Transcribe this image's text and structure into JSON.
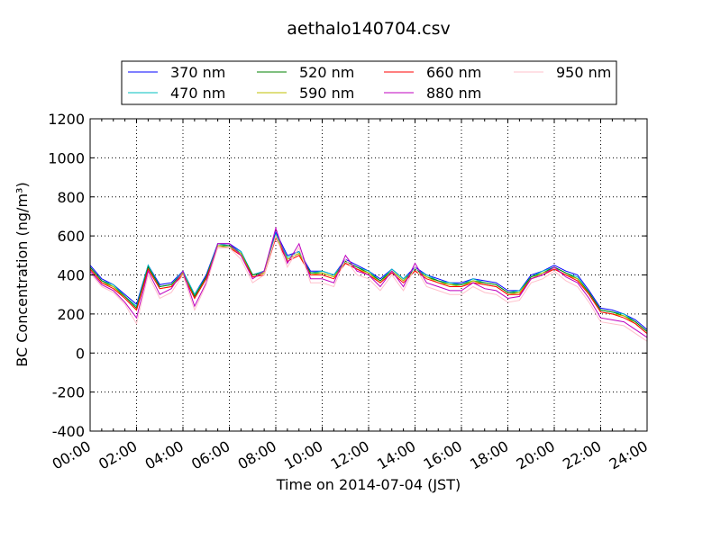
{
  "chart_data": {
    "type": "line",
    "title": "aethalo140704.csv",
    "xlabel": "Time on 2014-07-04 (JST)",
    "ylabel": "BC Concentration (ng/m³)",
    "ylim": [
      -400,
      1200
    ],
    "xlim": [
      "00:00",
      "24:00"
    ],
    "xticks": [
      "00:00",
      "02:00",
      "04:00",
      "06:00",
      "08:00",
      "10:00",
      "12:00",
      "14:00",
      "16:00",
      "18:00",
      "20:00",
      "22:00",
      "24:00"
    ],
    "yticks": [
      -400,
      -200,
      0,
      200,
      400,
      600,
      800,
      1000,
      1200
    ],
    "grid": true,
    "legend_position": "top",
    "x": [
      "00:00",
      "00:30",
      "01:00",
      "01:30",
      "02:00",
      "02:30",
      "03:00",
      "03:30",
      "04:00",
      "04:30",
      "05:00",
      "05:30",
      "06:00",
      "06:30",
      "07:00",
      "07:30",
      "08:00",
      "08:30",
      "09:00",
      "09:30",
      "10:00",
      "10:30",
      "11:00",
      "11:30",
      "12:00",
      "12:30",
      "13:00",
      "13:30",
      "14:00",
      "14:30",
      "15:00",
      "15:30",
      "16:00",
      "16:30",
      "17:00",
      "17:30",
      "18:00",
      "18:30",
      "19:00",
      "19:30",
      "20:00",
      "20:30",
      "21:00",
      "21:30",
      "22:00",
      "22:30",
      "23:00",
      "23:30",
      "24:00"
    ],
    "series": [
      {
        "name": "370 nm",
        "color": "#0000ff",
        "values": [
          450,
          380,
          350,
          300,
          250,
          450,
          350,
          360,
          420,
          300,
          400,
          560,
          560,
          520,
          400,
          420,
          620,
          500,
          520,
          420,
          420,
          400,
          480,
          450,
          420,
          380,
          430,
          380,
          440,
          400,
          380,
          360,
          360,
          380,
          370,
          360,
          320,
          320,
          400,
          420,
          450,
          420,
          400,
          320,
          230,
          220,
          200,
          170,
          120
        ]
      },
      {
        "name": "470 nm",
        "color": "#00bfbf",
        "values": [
          440,
          370,
          350,
          290,
          240,
          450,
          340,
          350,
          420,
          300,
          390,
          560,
          550,
          520,
          400,
          420,
          610,
          490,
          520,
          410,
          420,
          400,
          470,
          440,
          420,
          370,
          430,
          380,
          430,
          400,
          370,
          360,
          350,
          380,
          360,
          350,
          310,
          320,
          390,
          420,
          440,
          410,
          390,
          310,
          220,
          210,
          200,
          160,
          110
        ]
      },
      {
        "name": "520 nm",
        "color": "#008000",
        "values": [
          440,
          370,
          340,
          290,
          230,
          440,
          340,
          350,
          410,
          290,
          390,
          550,
          550,
          510,
          400,
          410,
          600,
          480,
          510,
          410,
          410,
          390,
          470,
          440,
          410,
          370,
          420,
          370,
          430,
          390,
          370,
          350,
          350,
          370,
          360,
          350,
          310,
          310,
          390,
          410,
          440,
          410,
          380,
          310,
          220,
          210,
          190,
          160,
          110
        ]
      },
      {
        "name": "590 nm",
        "color": "#bfbf00",
        "values": [
          430,
          360,
          340,
          280,
          220,
          430,
          330,
          340,
          410,
          280,
          380,
          550,
          540,
          510,
          390,
          410,
          600,
          480,
          510,
          400,
          410,
          390,
          460,
          430,
          410,
          360,
          420,
          370,
          420,
          390,
          360,
          350,
          340,
          370,
          350,
          340,
          300,
          310,
          380,
          410,
          430,
          400,
          380,
          300,
          210,
          200,
          190,
          150,
          100
        ]
      },
      {
        "name": "660 nm",
        "color": "#ff0000",
        "values": [
          430,
          360,
          330,
          280,
          220,
          430,
          330,
          340,
          400,
          280,
          380,
          540,
          540,
          500,
          390,
          400,
          590,
          470,
          500,
          400,
          400,
          380,
          460,
          430,
          400,
          360,
          410,
          360,
          420,
          380,
          360,
          340,
          340,
          360,
          350,
          340,
          300,
          300,
          380,
          400,
          430,
          400,
          370,
          300,
          210,
          200,
          180,
          150,
          100
        ]
      },
      {
        "name": "880 nm",
        "color": "#bf00bf",
        "values": [
          420,
          350,
          320,
          260,
          180,
          420,
          300,
          330,
          420,
          240,
          360,
          560,
          560,
          500,
          380,
          420,
          640,
          460,
          560,
          380,
          380,
          360,
          500,
          420,
          400,
          340,
          420,
          340,
          460,
          360,
          340,
          320,
          320,
          360,
          330,
          320,
          280,
          290,
          380,
          400,
          440,
          390,
          360,
          280,
          180,
          170,
          160,
          120,
          80
        ]
      },
      {
        "name": "950 nm",
        "color": "#ffc0cb",
        "values": [
          410,
          340,
          310,
          250,
          150,
          400,
          280,
          310,
          400,
          220,
          350,
          540,
          540,
          480,
          360,
          400,
          600,
          440,
          540,
          360,
          360,
          340,
          480,
          400,
          380,
          320,
          400,
          320,
          440,
          340,
          320,
          300,
          300,
          340,
          310,
          300,
          260,
          270,
          360,
          380,
          420,
          370,
          340,
          260,
          160,
          150,
          140,
          100,
          60
        ]
      }
    ],
    "annotations": []
  }
}
